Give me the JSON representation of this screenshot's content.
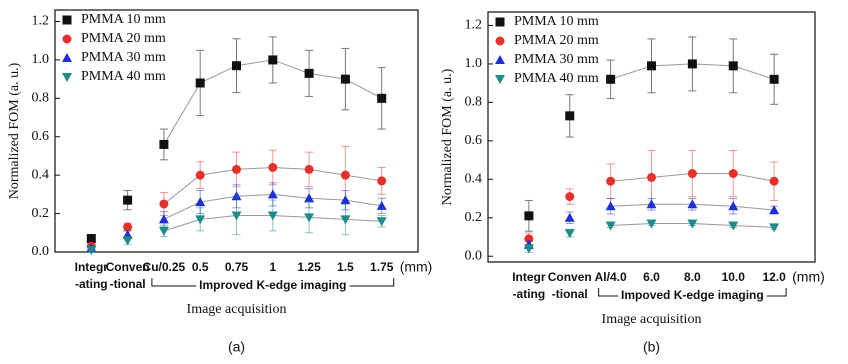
{
  "chart_data": [
    {
      "type": "line",
      "panel_label": "(a)",
      "y_label": "Normalized FOM (a. u.)",
      "x_label": "Image acquisition",
      "x_unit": "(mm)",
      "categories": [
        [
          "Integr",
          "-ating"
        ],
        [
          "Conven",
          "-tional"
        ],
        [
          "Cu/0.25"
        ],
        [
          "0.5"
        ],
        [
          "0.75"
        ],
        [
          "1"
        ],
        [
          "1.25"
        ],
        [
          "1.5"
        ],
        [
          "1.75"
        ]
      ],
      "bracket": {
        "label": "Improved K-edge imaging",
        "categories": [
          2,
          8
        ]
      },
      "ylim": [
        0,
        1.26
      ],
      "yticks": [
        {
          "value": 0,
          "label": "0.0"
        },
        {
          "value": 0.2,
          "label": "0.2"
        },
        {
          "value": 0.4,
          "label": "0.4"
        },
        {
          "value": 0.6,
          "label": "0.6"
        },
        {
          "value": 0.8,
          "label": "0.8"
        },
        {
          "value": 1,
          "label": "1.0"
        },
        {
          "value": 1.2,
          "label": "1.2"
        }
      ],
      "legend": "upper left",
      "series": [
        {
          "name": "PMMA 10 mm",
          "color": "#111111",
          "marker": "square",
          "values": [
            0.07,
            0.27,
            0.56,
            0.88,
            0.97,
            1.0,
            0.93,
            0.9,
            0.8
          ],
          "errors": [
            0.02,
            0.05,
            0.08,
            0.17,
            0.14,
            0.12,
            0.12,
            0.16,
            0.16
          ]
        },
        {
          "name": "PMMA 20 mm",
          "color": "#e8302a",
          "marker": "circle",
          "values": [
            0.03,
            0.13,
            0.25,
            0.4,
            0.43,
            0.44,
            0.43,
            0.4,
            0.37
          ],
          "errors": [
            0.01,
            0.02,
            0.06,
            0.07,
            0.09,
            0.09,
            0.09,
            0.15,
            0.07
          ]
        },
        {
          "name": "PMMA 30 mm",
          "color": "#1f2fd6",
          "marker": "triangle-up",
          "values": [
            0.02,
            0.09,
            0.17,
            0.26,
            0.29,
            0.3,
            0.28,
            0.27,
            0.24
          ],
          "errors": [
            0.01,
            0.02,
            0.04,
            0.06,
            0.06,
            0.06,
            0.05,
            0.05,
            0.04
          ]
        },
        {
          "name": "PMMA 40 mm",
          "color": "#1e8a8a",
          "marker": "triangle-down",
          "values": [
            0.01,
            0.06,
            0.11,
            0.17,
            0.19,
            0.19,
            0.18,
            0.17,
            0.16
          ],
          "errors": [
            0.01,
            0.02,
            0.03,
            0.06,
            0.1,
            0.08,
            0.08,
            0.08,
            0.03
          ]
        }
      ]
    },
    {
      "type": "line",
      "panel_label": "(b)",
      "y_label": "Normalized FOM (a. u.)",
      "x_label": "Image acquisition",
      "x_unit": "(mm)",
      "categories": [
        [
          "Integr",
          "-ating"
        ],
        [
          "Conven",
          "-tional"
        ],
        [
          "Al/4.0"
        ],
        [
          "6.0"
        ],
        [
          "8.0"
        ],
        [
          "10.0"
        ],
        [
          "12.0"
        ]
      ],
      "bracket": {
        "label": "Impoved K-edge imaging",
        "categories": [
          2,
          6
        ]
      },
      "ylim": [
        -0.03,
        1.27
      ],
      "yticks": [
        {
          "value": 0,
          "label": "0.0"
        },
        {
          "value": 0.2,
          "label": "0.2"
        },
        {
          "value": 0.4,
          "label": "0.4"
        },
        {
          "value": 0.6,
          "label": "0.6"
        },
        {
          "value": 0.8,
          "label": "0.8"
        },
        {
          "value": 1,
          "label": "1.0"
        },
        {
          "value": 1.2,
          "label": "1.2"
        }
      ],
      "legend": "upper left",
      "series": [
        {
          "name": "PMMA 10 mm",
          "color": "#111111",
          "marker": "square",
          "values": [
            0.21,
            0.73,
            0.92,
            0.99,
            1.0,
            0.99,
            0.92
          ],
          "errors": [
            0.08,
            0.11,
            0.1,
            0.14,
            0.14,
            0.14,
            0.13
          ]
        },
        {
          "name": "PMMA 20 mm",
          "color": "#e8302a",
          "marker": "circle",
          "values": [
            0.09,
            0.31,
            0.39,
            0.41,
            0.43,
            0.43,
            0.39
          ],
          "errors": [
            0.03,
            0.04,
            0.09,
            0.14,
            0.12,
            0.12,
            0.1
          ]
        },
        {
          "name": "PMMA 30 mm",
          "color": "#1f2fd6",
          "marker": "triangle-up",
          "values": [
            0.06,
            0.2,
            0.26,
            0.27,
            0.27,
            0.26,
            0.24
          ],
          "errors": [
            0.02,
            0.03,
            0.04,
            0.03,
            0.03,
            0.04,
            0.02
          ]
        },
        {
          "name": "PMMA 40 mm",
          "color": "#1e8a8a",
          "marker": "triangle-down",
          "values": [
            0.04,
            0.12,
            0.16,
            0.17,
            0.17,
            0.16,
            0.15
          ],
          "errors": [
            0.02,
            0.02,
            0.01,
            0.01,
            0.01,
            0.01,
            0.01
          ]
        }
      ]
    }
  ]
}
